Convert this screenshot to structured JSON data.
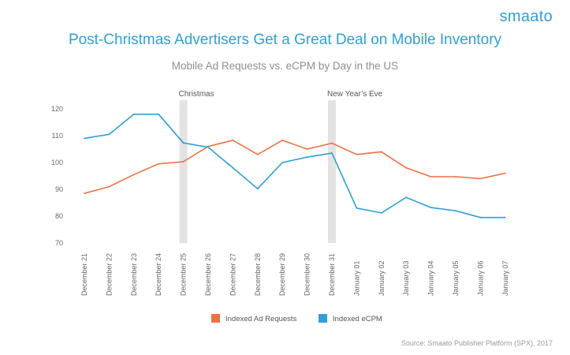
{
  "brand": {
    "logo_text": "smaato"
  },
  "source": "Source: Smaato Publisher Platform (SPX), 2017",
  "colors": {
    "requests": "#ee7044",
    "ecpm": "#2f9fd8",
    "band": "#e3e3e3",
    "title": "#2f9fd8"
  },
  "chart_data": {
    "type": "line",
    "title": "Post-Christmas Advertisers Get a Great Deal on Mobile Inventory",
    "subtitle": "Mobile Ad Requests vs. eCPM by Day in the US",
    "xlabel": "",
    "ylabel": "",
    "ylim": [
      70,
      120
    ],
    "yticks": [
      70,
      80,
      90,
      100,
      110,
      120
    ],
    "grid": false,
    "legend_position": "bottom",
    "categories": [
      "December 21",
      "December 22",
      "December 23",
      "December 24",
      "December 25",
      "December 26",
      "December 27",
      "December 28",
      "December 29",
      "December 30",
      "December 31",
      "January 01",
      "January 02",
      "January 03",
      "January 04",
      "January 05",
      "January 06",
      "January 07"
    ],
    "series": [
      {
        "name": "Indexed Ad Requests",
        "color": "#ee7044",
        "values": [
          88.5,
          91,
          95.5,
          99.5,
          100.3,
          106,
          108.3,
          103,
          108.3,
          105,
          107.2,
          103,
          104,
          98,
          94.7,
          94.7,
          94,
          96
        ]
      },
      {
        "name": "Indexed eCPM",
        "color": "#2f9fd8",
        "values": [
          109,
          110.5,
          118,
          118,
          107.3,
          105.7,
          98,
          90.2,
          100,
          102,
          103.5,
          83,
          81.2,
          87,
          83.2,
          82,
          79.5,
          79.5
        ]
      }
    ],
    "annotations": [
      {
        "label": "Christmas",
        "category": "December 25"
      },
      {
        "label": "New Year’s Eve",
        "category": "December 31"
      }
    ]
  }
}
